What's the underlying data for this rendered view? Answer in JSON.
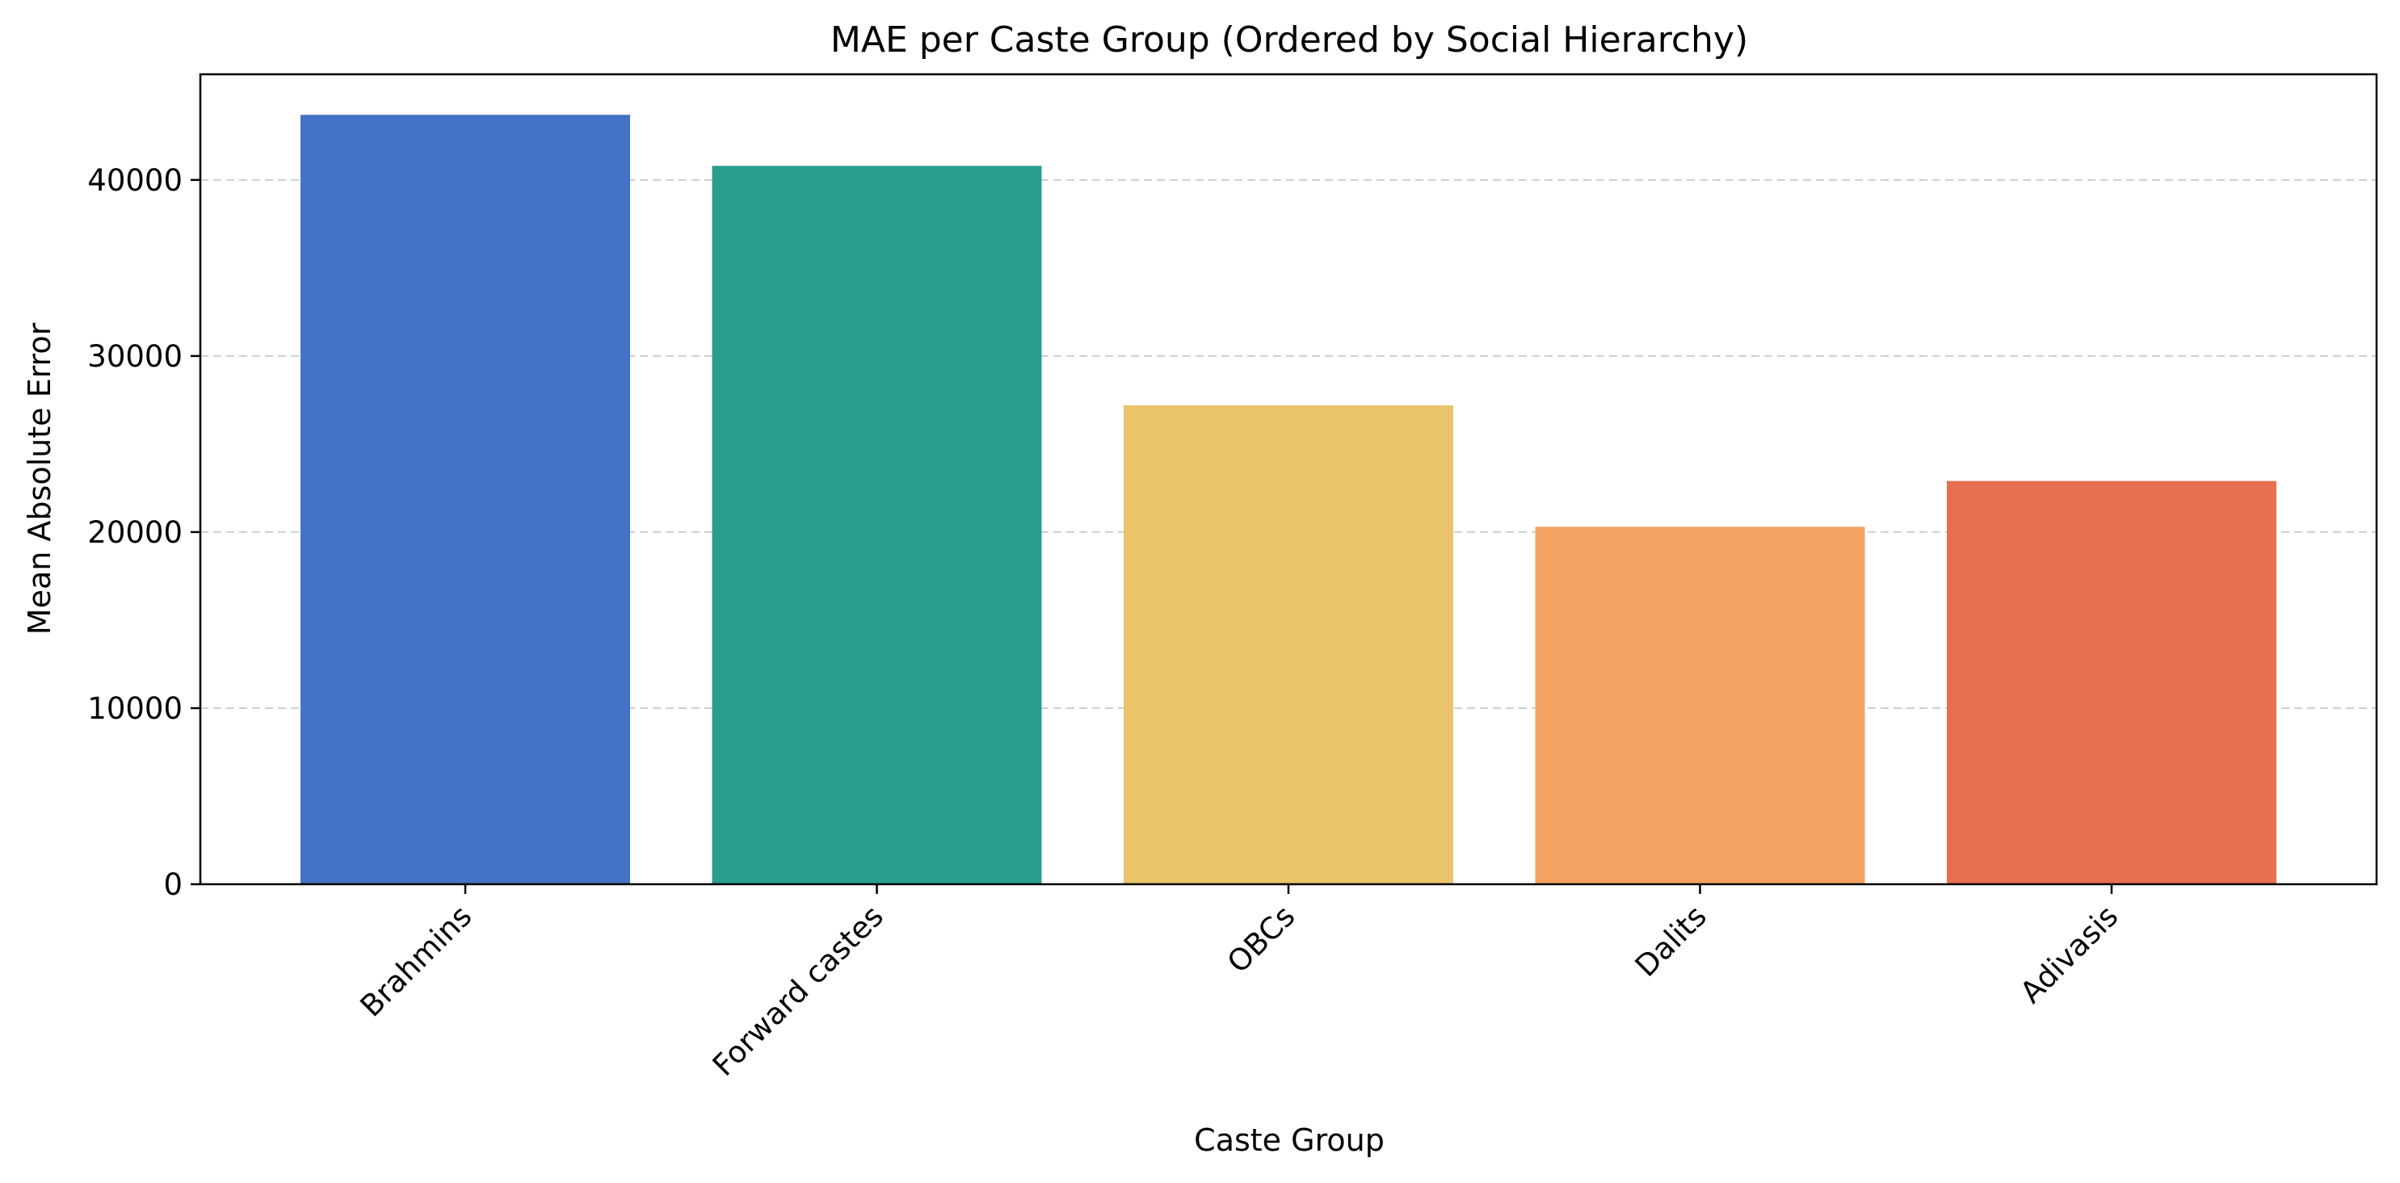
{
  "chart_data": {
    "type": "bar",
    "title": "MAE per Caste Group (Ordered by Social Hierarchy)",
    "xlabel": "Caste Group",
    "ylabel": "Mean Absolute Error",
    "categories": [
      "Brahmins",
      "Forward castes",
      "OBCs",
      "Dalits",
      "Adivasis"
    ],
    "values": [
      43700,
      40800,
      27200,
      20300,
      22900
    ],
    "colors": [
      "#4472c4",
      "#2a9d8f",
      "#e9c46a",
      "#f4a261",
      "#e76f51"
    ],
    "ylim": [
      0,
      46000
    ],
    "yticks": [
      0,
      10000,
      20000,
      30000,
      40000
    ],
    "ytick_labels": [
      "0",
      "10000",
      "20000",
      "30000",
      "40000"
    ],
    "grid": "y-dashed",
    "legend": "none"
  }
}
